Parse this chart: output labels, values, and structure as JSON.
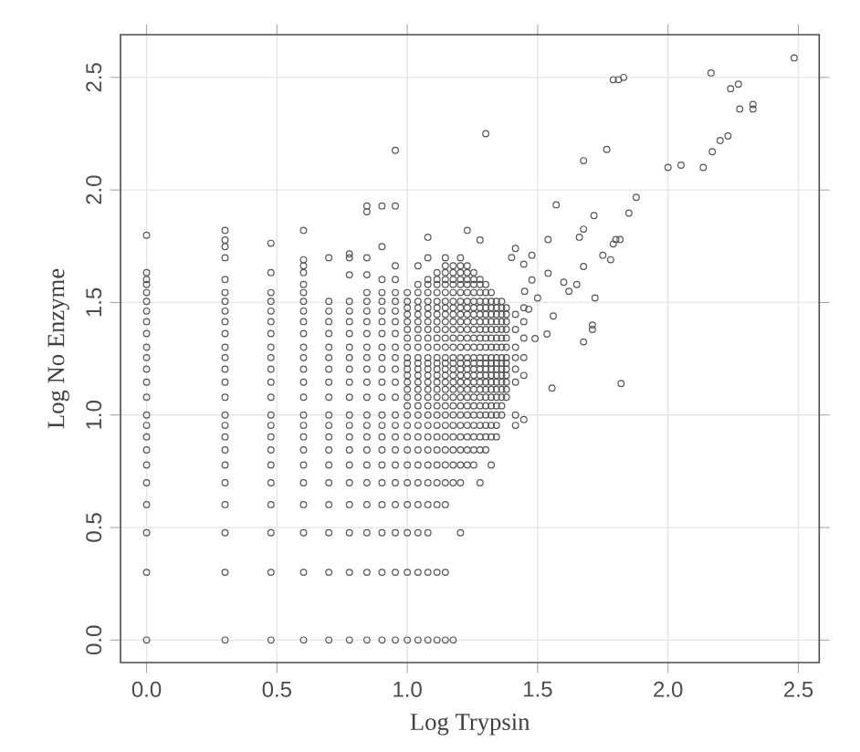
{
  "chart_data": {
    "type": "scatter",
    "xlabel": "Log Trypsin",
    "ylabel": "Log No Enzyme",
    "xlim": [
      -0.1,
      2.58
    ],
    "ylim": [
      -0.1,
      2.69
    ],
    "xticks": [
      {
        "value": 0,
        "label": "0.0"
      },
      {
        "value": 0.5,
        "label": "0.5"
      },
      {
        "value": 1,
        "label": "1.0"
      },
      {
        "value": 1.5,
        "label": "1.5"
      },
      {
        "value": 2,
        "label": "2.0"
      },
      {
        "value": 2.5,
        "label": "2.5"
      }
    ],
    "yticks": [
      {
        "value": 0,
        "label": "0.0"
      },
      {
        "value": 0.5,
        "label": "0.5"
      },
      {
        "value": 1,
        "label": "1.0"
      },
      {
        "value": 1.5,
        "label": "1.5"
      },
      {
        "value": 2,
        "label": "2.0"
      },
      {
        "value": 2.5,
        "label": "2.5"
      }
    ],
    "grid": true,
    "marker": "circle",
    "series": [
      {
        "color": "#555555",
        "x": [
          0,
          0,
          0,
          0,
          0,
          0,
          0,
          0,
          0,
          0,
          0,
          0,
          0,
          0,
          0,
          0,
          0,
          0,
          0,
          0,
          0,
          0,
          0,
          0
        ],
        "values": [
          0,
          0.301,
          0.477,
          0.602,
          0.699,
          0.778,
          0.845,
          0.903,
          0.954,
          1.0,
          1.079,
          1.146,
          1.204,
          1.255,
          1.301,
          1.362,
          1.415,
          1.462,
          1.505,
          1.544,
          1.58,
          1.602,
          1.633,
          1.799
        ]
      },
      {
        "color": "#555555",
        "x": [
          0.301,
          0.301,
          0.301,
          0.301,
          0.301,
          0.301,
          0.301,
          0.301,
          0.301,
          0.301,
          0.301,
          0.301,
          0.301,
          0.301,
          0.301,
          0.301,
          0.301,
          0.301,
          0.301,
          0.301,
          0.301,
          0.301,
          0.301,
          0.301,
          0.301
        ],
        "values": [
          0,
          0.301,
          0.477,
          0.602,
          0.699,
          0.778,
          0.845,
          0.903,
          0.954,
          1.0,
          1.079,
          1.146,
          1.204,
          1.255,
          1.301,
          1.362,
          1.415,
          1.462,
          1.505,
          1.544,
          1.602,
          1.699,
          1.748,
          1.778,
          1.82
        ]
      },
      {
        "color": "#555555",
        "x": [
          0.477,
          0.477,
          0.477,
          0.477,
          0.477,
          0.477,
          0.477,
          0.477,
          0.477,
          0.477,
          0.477,
          0.477,
          0.477,
          0.477,
          0.477,
          0.477,
          0.477,
          0.477,
          0.477,
          0.477,
          0.477,
          0.477
        ],
        "values": [
          0,
          0.301,
          0.477,
          0.602,
          0.699,
          0.778,
          0.845,
          0.903,
          0.954,
          1.0,
          1.079,
          1.146,
          1.204,
          1.255,
          1.301,
          1.362,
          1.415,
          1.462,
          1.505,
          1.544,
          1.633,
          1.763
        ]
      },
      {
        "color": "#555555",
        "x": [
          0.602,
          0.602,
          0.602,
          0.602,
          0.602,
          0.602,
          0.602,
          0.602,
          0.602,
          0.602,
          0.602,
          0.602,
          0.602,
          0.602,
          0.602,
          0.602,
          0.602,
          0.602,
          0.602,
          0.602,
          0.602,
          0.602,
          0.602,
          0.602,
          0.602
        ],
        "values": [
          0,
          0.301,
          0.477,
          0.602,
          0.699,
          0.778,
          0.845,
          0.903,
          0.954,
          1.0,
          1.079,
          1.146,
          1.204,
          1.255,
          1.301,
          1.362,
          1.415,
          1.462,
          1.505,
          1.544,
          1.58,
          1.633,
          1.663,
          1.69,
          1.82
        ]
      },
      {
        "color": "#555555",
        "x": [
          0.699,
          0.699,
          0.699,
          0.699,
          0.699,
          0.699,
          0.699,
          0.699,
          0.699,
          0.699,
          0.699,
          0.699,
          0.699,
          0.699,
          0.699,
          0.699,
          0.699,
          0.699,
          0.699,
          0.699
        ],
        "values": [
          0,
          0.301,
          0.477,
          0.602,
          0.699,
          0.778,
          0.845,
          0.903,
          0.954,
          1.0,
          1.079,
          1.146,
          1.204,
          1.255,
          1.301,
          1.362,
          1.415,
          1.462,
          1.505,
          1.699
        ]
      },
      {
        "color": "#555555",
        "x": [
          0.778,
          0.778,
          0.778,
          0.778,
          0.778,
          0.778,
          0.778,
          0.778,
          0.778,
          0.778,
          0.778,
          0.778,
          0.778,
          0.778,
          0.778,
          0.778,
          0.778,
          0.778,
          0.778,
          0.778,
          0.778,
          0.778
        ],
        "values": [
          0,
          0.301,
          0.477,
          0.602,
          0.699,
          0.778,
          0.845,
          0.903,
          0.954,
          1.0,
          1.079,
          1.146,
          1.204,
          1.255,
          1.301,
          1.362,
          1.415,
          1.462,
          1.505,
          1.623,
          1.699,
          1.716
        ]
      },
      {
        "color": "#555555",
        "x": [
          0.845,
          0.845,
          0.845,
          0.845,
          0.845,
          0.845,
          0.845,
          0.845,
          0.845,
          0.845,
          0.845,
          0.845,
          0.845,
          0.845,
          0.845,
          0.845,
          0.845,
          0.845,
          0.845,
          0.845,
          0.845,
          0.845,
          0.845,
          0.845
        ],
        "values": [
          0,
          0.301,
          0.477,
          0.602,
          0.699,
          0.778,
          0.845,
          0.903,
          0.954,
          1.0,
          1.079,
          1.146,
          1.204,
          1.255,
          1.301,
          1.362,
          1.415,
          1.462,
          1.505,
          1.544,
          1.623,
          1.699,
          1.903,
          1.929
        ]
      },
      {
        "color": "#555555",
        "x": [
          0.903,
          0.903,
          0.903,
          0.903,
          0.903,
          0.903,
          0.903,
          0.903,
          0.903,
          0.903,
          0.903,
          0.903,
          0.903,
          0.903,
          0.903,
          0.903,
          0.903,
          0.903,
          0.903,
          0.903,
          0.903,
          0.903,
          0.903
        ],
        "values": [
          0,
          0.301,
          0.477,
          0.602,
          0.699,
          0.778,
          0.845,
          0.903,
          0.954,
          1.0,
          1.079,
          1.146,
          1.204,
          1.255,
          1.301,
          1.362,
          1.415,
          1.462,
          1.505,
          1.544,
          1.602,
          1.748,
          1.929
        ]
      },
      {
        "color": "#555555",
        "x": [
          0.954,
          0.954,
          0.954,
          0.954,
          0.954,
          0.954,
          0.954,
          0.954,
          0.954,
          0.954,
          0.954,
          0.954,
          0.954,
          0.954,
          0.954,
          0.954,
          0.954,
          0.954,
          0.954,
          0.954,
          0.954,
          0.954,
          0.954,
          0.954
        ],
        "values": [
          0,
          0.301,
          0.477,
          0.602,
          0.699,
          0.778,
          0.845,
          0.903,
          0.954,
          1.0,
          1.079,
          1.146,
          1.204,
          1.255,
          1.301,
          1.362,
          1.415,
          1.462,
          1.505,
          1.544,
          1.602,
          1.663,
          1.929,
          2.176
        ]
      },
      {
        "color": "#555555",
        "x": [
          1.0,
          1.0,
          1.0,
          1.0,
          1.0,
          1.0,
          1.0,
          1.0,
          1.0,
          1.0,
          1.0,
          1.0,
          1.0,
          1.0,
          1.0,
          1.0,
          1.0,
          1.0,
          1.0,
          1.0,
          1.0,
          1.0,
          1.0,
          1.0,
          1.0,
          1.0
        ],
        "values": [
          0,
          0.301,
          0.477,
          0.602,
          0.699,
          0.778,
          0.845,
          0.903,
          0.954,
          1.0,
          1.041,
          1.079,
          1.114,
          1.146,
          1.176,
          1.204,
          1.23,
          1.255,
          1.301,
          1.342,
          1.38,
          1.415,
          1.447,
          1.477,
          1.505,
          1.544
        ]
      },
      {
        "color": "#555555",
        "x": [
          1.041,
          1.041,
          1.041,
          1.041,
          1.041,
          1.041,
          1.041,
          1.041,
          1.041,
          1.041,
          1.041,
          1.041,
          1.041,
          1.041,
          1.041,
          1.041,
          1.041,
          1.041,
          1.041,
          1.041,
          1.041,
          1.041,
          1.041,
          1.041,
          1.041,
          1.041,
          1.041,
          1.041
        ],
        "values": [
          0,
          0.301,
          0.477,
          0.602,
          0.699,
          0.778,
          0.845,
          0.903,
          0.954,
          1.0,
          1.041,
          1.079,
          1.114,
          1.146,
          1.176,
          1.204,
          1.23,
          1.255,
          1.301,
          1.342,
          1.38,
          1.415,
          1.447,
          1.477,
          1.505,
          1.544,
          1.58,
          1.663
        ]
      },
      {
        "color": "#555555",
        "x": [
          1.079,
          1.079,
          1.079,
          1.079,
          1.079,
          1.079,
          1.079,
          1.079,
          1.079,
          1.079,
          1.079,
          1.079,
          1.079,
          1.079,
          1.079,
          1.079,
          1.079,
          1.079,
          1.079,
          1.079,
          1.079,
          1.079,
          1.079,
          1.079,
          1.079,
          1.079,
          1.079,
          1.079,
          1.079,
          1.079
        ],
        "values": [
          0,
          0.301,
          0.477,
          0.602,
          0.699,
          0.778,
          0.845,
          0.903,
          0.954,
          1.0,
          1.041,
          1.079,
          1.114,
          1.146,
          1.176,
          1.204,
          1.23,
          1.255,
          1.301,
          1.342,
          1.38,
          1.415,
          1.447,
          1.477,
          1.505,
          1.544,
          1.58,
          1.602,
          1.699,
          1.79
        ]
      },
      {
        "color": "#555555",
        "x": [
          1.114,
          1.114,
          1.114,
          1.114,
          1.114,
          1.114,
          1.114,
          1.114,
          1.114,
          1.114,
          1.114,
          1.114,
          1.114,
          1.114,
          1.114,
          1.114,
          1.114,
          1.114,
          1.114,
          1.114,
          1.114,
          1.114,
          1.114,
          1.114,
          1.114,
          1.114,
          1.114,
          1.114
        ],
        "values": [
          0,
          0.301,
          0.602,
          0.699,
          0.778,
          0.845,
          0.903,
          0.954,
          1.0,
          1.041,
          1.079,
          1.114,
          1.146,
          1.176,
          1.204,
          1.23,
          1.255,
          1.301,
          1.342,
          1.38,
          1.415,
          1.447,
          1.477,
          1.505,
          1.544,
          1.58,
          1.602,
          1.633
        ]
      },
      {
        "color": "#555555",
        "x": [
          1.146,
          1.146,
          1.146,
          1.146,
          1.146,
          1.146,
          1.146,
          1.146,
          1.146,
          1.146,
          1.146,
          1.146,
          1.146,
          1.146,
          1.146,
          1.146,
          1.146,
          1.146,
          1.146,
          1.146,
          1.146,
          1.146,
          1.146,
          1.146,
          1.146,
          1.146,
          1.146,
          1.146,
          1.146,
          1.146
        ],
        "values": [
          0,
          0.301,
          0.602,
          0.699,
          0.778,
          0.845,
          0.903,
          0.954,
          1.0,
          1.041,
          1.079,
          1.114,
          1.146,
          1.176,
          1.204,
          1.23,
          1.255,
          1.301,
          1.342,
          1.38,
          1.415,
          1.447,
          1.477,
          1.505,
          1.544,
          1.58,
          1.602,
          1.633,
          1.663,
          1.699
        ]
      },
      {
        "color": "#555555",
        "x": [
          1.176,
          1.176,
          1.176,
          1.176,
          1.176,
          1.176,
          1.176,
          1.176,
          1.176,
          1.176,
          1.176,
          1.176,
          1.176,
          1.176,
          1.176,
          1.176,
          1.176,
          1.176,
          1.176,
          1.176,
          1.176,
          1.176,
          1.176,
          1.176,
          1.176,
          1.176,
          1.176
        ],
        "values": [
          0,
          0.699,
          0.778,
          0.845,
          0.903,
          0.954,
          1.0,
          1.041,
          1.079,
          1.114,
          1.146,
          1.176,
          1.204,
          1.23,
          1.255,
          1.301,
          1.342,
          1.38,
          1.415,
          1.447,
          1.477,
          1.505,
          1.544,
          1.58,
          1.602,
          1.633,
          1.663
        ]
      },
      {
        "color": "#555555",
        "x": [
          1.204,
          1.204,
          1.204,
          1.204,
          1.204,
          1.204,
          1.204,
          1.204,
          1.204,
          1.204,
          1.204,
          1.204,
          1.204,
          1.204,
          1.204,
          1.204,
          1.204,
          1.204,
          1.204,
          1.204,
          1.204,
          1.204,
          1.204,
          1.204,
          1.204,
          1.204,
          1.204,
          1.204
        ],
        "values": [
          0.477,
          0.699,
          0.778,
          0.845,
          0.903,
          0.954,
          1.0,
          1.041,
          1.079,
          1.114,
          1.146,
          1.176,
          1.204,
          1.23,
          1.255,
          1.301,
          1.342,
          1.38,
          1.415,
          1.447,
          1.477,
          1.505,
          1.544,
          1.58,
          1.602,
          1.633,
          1.663,
          1.699
        ]
      },
      {
        "color": "#555555",
        "x": [
          1.23,
          1.23,
          1.23,
          1.23,
          1.23,
          1.23,
          1.23,
          1.23,
          1.23,
          1.23,
          1.23,
          1.23,
          1.23,
          1.23,
          1.23,
          1.23,
          1.23,
          1.23,
          1.23,
          1.23,
          1.23,
          1.23,
          1.23,
          1.23,
          1.23,
          1.23
        ],
        "values": [
          0.778,
          0.845,
          0.903,
          0.954,
          1.0,
          1.041,
          1.079,
          1.114,
          1.146,
          1.176,
          1.204,
          1.23,
          1.255,
          1.301,
          1.342,
          1.38,
          1.415,
          1.447,
          1.477,
          1.505,
          1.544,
          1.58,
          1.602,
          1.633,
          1.663,
          1.82
        ]
      },
      {
        "color": "#555555",
        "x": [
          1.255,
          1.255,
          1.255,
          1.255,
          1.255,
          1.255,
          1.255,
          1.255,
          1.255,
          1.255,
          1.255,
          1.255,
          1.255,
          1.255,
          1.255,
          1.255,
          1.255,
          1.255,
          1.255,
          1.255,
          1.255,
          1.255,
          1.255,
          1.255
        ],
        "values": [
          0.778,
          0.845,
          0.903,
          0.954,
          1.0,
          1.041,
          1.079,
          1.114,
          1.146,
          1.176,
          1.204,
          1.23,
          1.255,
          1.301,
          1.342,
          1.38,
          1.415,
          1.447,
          1.477,
          1.505,
          1.544,
          1.58,
          1.602,
          1.633
        ]
      },
      {
        "color": "#555555",
        "x": [
          1.279,
          1.279,
          1.279,
          1.279,
          1.279,
          1.279,
          1.279,
          1.279,
          1.279,
          1.279,
          1.279,
          1.279,
          1.279,
          1.279,
          1.279,
          1.279,
          1.279,
          1.279,
          1.279,
          1.279,
          1.279,
          1.279,
          1.279,
          1.279
        ],
        "values": [
          0.699,
          0.845,
          0.903,
          0.954,
          1.0,
          1.041,
          1.079,
          1.114,
          1.146,
          1.176,
          1.204,
          1.23,
          1.255,
          1.301,
          1.342,
          1.38,
          1.415,
          1.447,
          1.477,
          1.505,
          1.544,
          1.58,
          1.602,
          1.778
        ]
      },
      {
        "color": "#555555",
        "x": [
          1.301,
          1.301,
          1.301,
          1.301,
          1.301,
          1.301,
          1.301,
          1.301,
          1.301,
          1.301,
          1.301,
          1.301,
          1.301,
          1.301,
          1.301,
          1.301,
          1.301,
          1.301,
          1.301,
          1.301,
          1.301,
          1.301
        ],
        "values": [
          0.845,
          0.903,
          0.954,
          1.0,
          1.041,
          1.079,
          1.114,
          1.146,
          1.176,
          1.204,
          1.23,
          1.255,
          1.301,
          1.342,
          1.38,
          1.415,
          1.447,
          1.477,
          1.505,
          1.544,
          1.58,
          2.25
        ]
      },
      {
        "color": "#555555",
        "x": [
          1.322,
          1.322,
          1.322,
          1.322,
          1.322,
          1.322,
          1.322,
          1.322,
          1.322,
          1.322,
          1.322,
          1.322,
          1.322,
          1.322,
          1.322,
          1.322,
          1.322,
          1.322,
          1.322,
          1.322
        ],
        "values": [
          0.778,
          0.903,
          0.954,
          1.0,
          1.041,
          1.079,
          1.114,
          1.146,
          1.176,
          1.204,
          1.23,
          1.255,
          1.301,
          1.342,
          1.38,
          1.415,
          1.447,
          1.477,
          1.505,
          1.544
        ]
      },
      {
        "color": "#555555",
        "x": [
          1.342,
          1.342,
          1.342,
          1.342,
          1.342,
          1.342,
          1.342,
          1.342,
          1.342,
          1.342,
          1.342,
          1.342,
          1.342,
          1.342,
          1.342,
          1.342,
          1.342,
          1.342
        ],
        "values": [
          0.903,
          0.954,
          1.0,
          1.041,
          1.079,
          1.114,
          1.146,
          1.176,
          1.204,
          1.23,
          1.255,
          1.301,
          1.342,
          1.38,
          1.415,
          1.447,
          1.477,
          1.505
        ]
      },
      {
        "color": "#555555",
        "x": [
          1.362,
          1.362,
          1.362,
          1.362,
          1.362,
          1.362,
          1.362,
          1.362,
          1.362,
          1.362,
          1.362,
          1.362,
          1.362,
          1.362,
          1.362,
          1.362
        ],
        "values": [
          1.0,
          1.041,
          1.079,
          1.114,
          1.146,
          1.176,
          1.204,
          1.23,
          1.255,
          1.301,
          1.342,
          1.38,
          1.415,
          1.447,
          1.477,
          1.505
        ]
      },
      {
        "color": "#555555",
        "x": [
          1.38,
          1.38,
          1.38,
          1.38,
          1.38,
          1.38,
          1.38,
          1.38,
          1.38,
          1.38,
          1.38,
          1.38,
          1.38
        ],
        "values": [
          1.079,
          1.114,
          1.146,
          1.176,
          1.204,
          1.23,
          1.255,
          1.301,
          1.342,
          1.38,
          1.415,
          1.447,
          1.477
        ]
      },
      {
        "color": "#555555",
        "x": [
          1.415,
          1.415,
          1.415,
          1.415,
          1.415,
          1.415,
          1.415,
          1.415,
          1.415
        ],
        "values": [
          0.954,
          1.0,
          1.146,
          1.204,
          1.255,
          1.301,
          1.38,
          1.447,
          1.74
        ]
      },
      {
        "color": "#555555",
        "x": [
          1.447,
          1.447,
          1.447,
          1.447,
          1.447,
          1.447,
          1.447
        ],
        "values": [
          0.98,
          1.176,
          1.255,
          1.342,
          1.415,
          1.477,
          1.67
        ]
      },
      {
        "color": "#555555",
        "x": [
          1.555,
          1.82,
          1.4,
          1.478,
          1.478,
          1.466,
          1.49,
          1.536,
          1.56,
          1.54,
          1.54,
          1.571,
          1.6,
          1.66,
          1.676,
          1.676,
          1.676,
          1.71,
          1.71,
          1.72,
          1.716,
          1.75,
          1.78,
          1.79,
          1.8,
          1.816,
          1.85,
          1.878,
          1.676,
          1.765,
          2.0,
          2.05,
          2.135,
          2.17,
          2.2,
          2.23,
          1.79,
          1.81,
          1.83,
          2.165,
          2.24,
          2.27,
          2.275,
          2.326,
          2.326,
          2.484,
          1.62,
          1.65,
          1.5,
          1.45
        ],
        "values": [
          1.12,
          1.14,
          1.7,
          1.71,
          1.6,
          1.47,
          1.34,
          1.36,
          1.44,
          1.63,
          1.78,
          1.934,
          1.59,
          1.79,
          1.66,
          1.826,
          1.325,
          1.4,
          1.38,
          1.52,
          1.886,
          1.71,
          1.69,
          1.76,
          1.78,
          1.78,
          1.897,
          1.967,
          2.13,
          2.18,
          2.1,
          2.11,
          2.1,
          2.17,
          2.22,
          2.24,
          2.49,
          2.49,
          2.5,
          2.52,
          2.45,
          2.47,
          2.36,
          2.36,
          2.38,
          2.587,
          1.55,
          1.58,
          1.52,
          1.55
        ]
      }
    ]
  }
}
